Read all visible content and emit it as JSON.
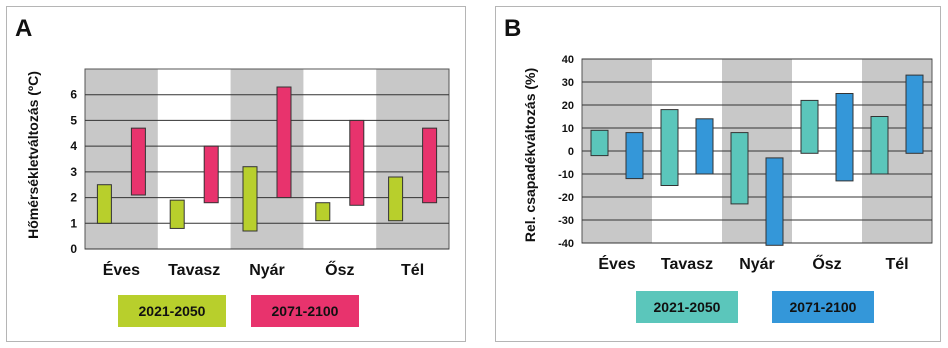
{
  "panels": [
    {
      "letter": "A",
      "ylabel": "Hőmérsékletváltozás (ºC)",
      "legend": [
        "2021-2050",
        "2071-2100"
      ]
    },
    {
      "letter": "B",
      "ylabel": "Rel. csapadékváltozás (%)",
      "legend": [
        "2021-2050",
        "2071-2100"
      ]
    }
  ],
  "colors": {
    "A_2021_2050": "#b8cf2c",
    "A_2071_2100": "#e8336d",
    "B_2021_2050": "#5bc6bb",
    "B_2071_2100": "#3497d9",
    "shade": "#c8c8c8"
  },
  "chart_data": [
    {
      "type": "bar",
      "title": "A",
      "ylabel": "Hőmérsékletváltozás (ºC)",
      "categories": [
        "Éves",
        "Tavasz",
        "Nyár",
        "Ősz",
        "Tél"
      ],
      "yticks": [
        0,
        1,
        2,
        3,
        4,
        5,
        6
      ],
      "ylim": [
        0,
        7
      ],
      "grid": true,
      "series": [
        {
          "name": "2021-2050",
          "ranges": [
            [
              1.0,
              2.5
            ],
            [
              0.8,
              1.9
            ],
            [
              0.7,
              3.2
            ],
            [
              1.1,
              1.8
            ],
            [
              1.1,
              2.8
            ]
          ]
        },
        {
          "name": "2071-2100",
          "ranges": [
            [
              2.1,
              4.7
            ],
            [
              1.8,
              4.0
            ],
            [
              2.0,
              6.3
            ],
            [
              1.7,
              5.0
            ],
            [
              1.8,
              4.7
            ]
          ]
        }
      ]
    },
    {
      "type": "bar",
      "title": "B",
      "ylabel": "Rel. csapadékváltozás (%)",
      "categories": [
        "Éves",
        "Tavasz",
        "Nyár",
        "Ősz",
        "Tél"
      ],
      "yticks": [
        -40,
        -30,
        -20,
        -10,
        0,
        10,
        20,
        30,
        40
      ],
      "ylim": [
        -40,
        40
      ],
      "grid": true,
      "series": [
        {
          "name": "2021-2050",
          "ranges": [
            [
              -2,
              9
            ],
            [
              -15,
              18
            ],
            [
              -23,
              8
            ],
            [
              -1,
              22
            ],
            [
              -10,
              15
            ]
          ]
        },
        {
          "name": "2071-2100",
          "ranges": [
            [
              -12,
              8
            ],
            [
              -10,
              14
            ],
            [
              -41,
              -3
            ],
            [
              -13,
              25
            ],
            [
              -1,
              33
            ]
          ]
        }
      ]
    }
  ]
}
